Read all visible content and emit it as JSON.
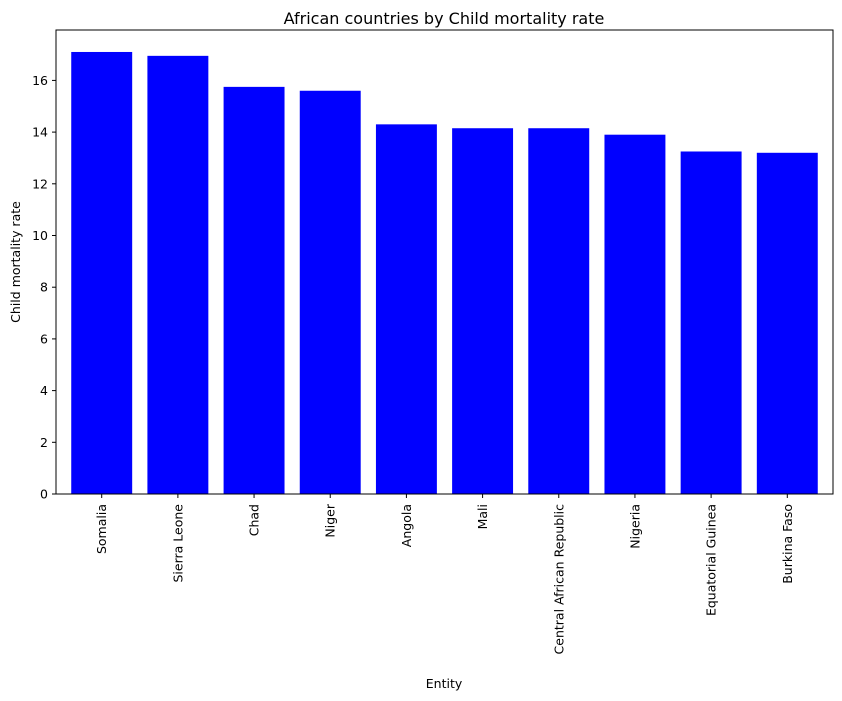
{
  "chart_data": {
    "type": "bar",
    "title": "African countries by Child mortality rate",
    "xlabel": "Entity",
    "ylabel": "Child mortality rate",
    "categories": [
      "Somalia",
      "Sierra Leone",
      "Chad",
      "Niger",
      "Angola",
      "Mali",
      "Central African Republic",
      "Nigeria",
      "Equatorial Guinea",
      "Burkina Faso"
    ],
    "values": [
      17.1,
      16.95,
      15.75,
      15.6,
      14.3,
      14.15,
      14.15,
      13.9,
      13.25,
      13.2
    ],
    "ylim": [
      0,
      17.95
    ],
    "yticks": [
      0,
      2,
      4,
      6,
      8,
      10,
      12,
      14,
      16
    ],
    "grid": false,
    "bar_color": "#0000ff"
  }
}
